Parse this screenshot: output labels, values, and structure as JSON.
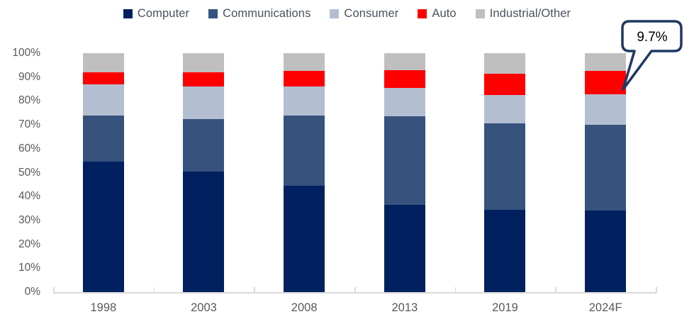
{
  "chart_data": {
    "type": "bar",
    "variant": "stacked-100-percent",
    "title": "",
    "categories": [
      "1998",
      "2003",
      "2008",
      "2013",
      "2019",
      "2024F"
    ],
    "series": [
      {
        "name": "Computer",
        "color": "#002060",
        "values": [
          54.5,
          50.5,
          44.5,
          36.5,
          34.5,
          34.0
        ]
      },
      {
        "name": "Communications",
        "color": "#36527D",
        "values": [
          19.5,
          22.0,
          29.5,
          37.0,
          36.0,
          36.0
        ]
      },
      {
        "name": "Consumer",
        "color": "#B3BFD1",
        "values": [
          13.0,
          13.5,
          12.0,
          12.0,
          12.0,
          12.8
        ]
      },
      {
        "name": "Auto",
        "color": "#FF0000",
        "values": [
          5.0,
          6.0,
          6.5,
          7.3,
          9.0,
          9.7
        ]
      },
      {
        "name": "Industrial/Other",
        "color": "#BFBFBF",
        "values": [
          8.0,
          8.0,
          7.5,
          7.2,
          8.5,
          7.5
        ]
      }
    ],
    "y_tick_labels": [
      "0%",
      "10%",
      "20%",
      "30%",
      "40%",
      "50%",
      "60%",
      "70%",
      "80%",
      "90%",
      "100%"
    ],
    "y_tick_values": [
      0,
      10,
      20,
      30,
      40,
      50,
      60,
      70,
      80,
      90,
      100
    ],
    "ylim": [
      0,
      100
    ],
    "xlabel": "",
    "ylabel": "",
    "grid": false,
    "legend_position": "top",
    "annotation": {
      "text": "9.7%",
      "target_category": "2024F",
      "target_series": "Auto",
      "border_color": "#1F3864",
      "fill_color": "#FFFFFF"
    },
    "axis_color": "#D9D9D9",
    "axis_text_color": "#595959",
    "legend_text_color": "#4A5160"
  }
}
